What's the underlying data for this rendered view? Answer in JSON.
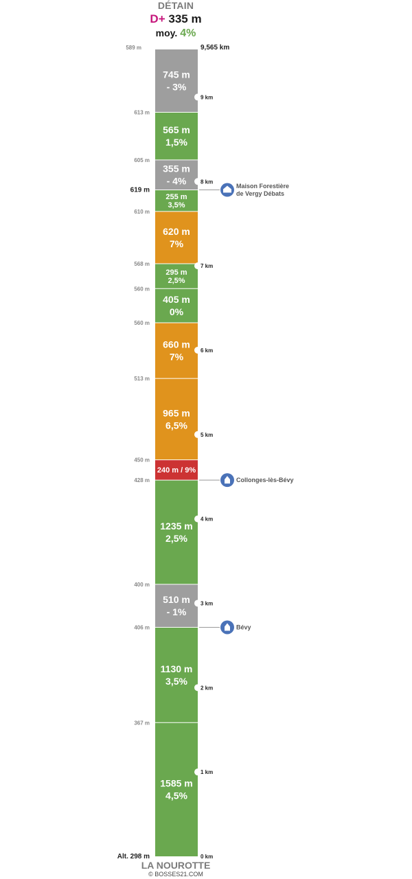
{
  "header": {
    "title": "DÉTAIN",
    "dplus_prefix": "D+",
    "dplus_value": "335 m",
    "avg_prefix": "moy.",
    "avg_value": "4%"
  },
  "footer": {
    "start_name": "LA NOUROTTE",
    "copyright": "© BOSSES21.COM"
  },
  "chart_data": {
    "type": "bar",
    "orientation": "vertical-stacked-segments",
    "total_km": 9.565,
    "total_label": "9,565 km",
    "start_altitude_label": "Alt. 298 m",
    "segments": [
      {
        "length_m": 1585,
        "label": "1585 m",
        "grade_label": "4,5%",
        "color": "#6aa84f",
        "start_alt_label": "",
        "wide": true
      },
      {
        "length_m": 1130,
        "label": "1130 m",
        "grade_label": "3,5%",
        "color": "#6aa84f",
        "start_alt_label": "367 m",
        "wide": true
      },
      {
        "length_m": 510,
        "label": "510 m",
        "grade_label": "- 1%",
        "color": "#9e9e9e",
        "start_alt_label": "406 m",
        "wide": true
      },
      {
        "length_m": 1235,
        "label": "1235 m",
        "grade_label": "2,5%",
        "color": "#6aa84f",
        "start_alt_label": "400 m",
        "wide": true
      },
      {
        "length_m": 240,
        "label": "240 m / 9%",
        "grade_label": "",
        "color": "#cc3333",
        "start_alt_label": "428 m",
        "wide": false
      },
      {
        "length_m": 965,
        "label": "965 m",
        "grade_label": "6,5%",
        "color": "#e0931d",
        "start_alt_label": "450 m",
        "wide": true
      },
      {
        "length_m": 660,
        "label": "660 m",
        "grade_label": "7%",
        "color": "#e0931d",
        "start_alt_label": "513 m",
        "wide": true
      },
      {
        "length_m": 405,
        "label": "405 m",
        "grade_label": "0%",
        "color": "#6aa84f",
        "start_alt_label": "560 m",
        "wide": true
      },
      {
        "length_m": 295,
        "label": "295 m",
        "grade_label": "2,5%",
        "color": "#6aa84f",
        "start_alt_label": "560 m",
        "wide": false
      },
      {
        "length_m": 620,
        "label": "620 m",
        "grade_label": "7%",
        "color": "#e0931d",
        "start_alt_label": "568 m",
        "wide": true
      },
      {
        "length_m": 255,
        "label": "255 m",
        "grade_label": "3,5%",
        "color": "#6aa84f",
        "start_alt_label": "610 m",
        "wide": false
      },
      {
        "length_m": 355,
        "label": "355 m",
        "grade_label": "- 4%",
        "color": "#9e9e9e",
        "start_alt_label": "619 m",
        "wide": true
      },
      {
        "length_m": 565,
        "label": "565 m",
        "grade_label": "1,5%",
        "color": "#6aa84f",
        "start_alt_label": "605 m",
        "wide": true
      },
      {
        "length_m": 745,
        "label": "745 m",
        "grade_label": "- 3%",
        "color": "#9e9e9e",
        "start_alt_label": "613 m",
        "wide": true
      }
    ],
    "end_alt_label": "589 m",
    "km_markers": [
      {
        "km": 0,
        "label": "0 km"
      },
      {
        "km": 1,
        "label": "1 km"
      },
      {
        "km": 2,
        "label": "2 km"
      },
      {
        "km": 3,
        "label": "3 km"
      },
      {
        "km": 4,
        "label": "4 km"
      },
      {
        "km": 5,
        "label": "5 km"
      },
      {
        "km": 6,
        "label": "6 km"
      },
      {
        "km": 7,
        "label": "7 km"
      },
      {
        "km": 8,
        "label": "8 km"
      },
      {
        "km": 9,
        "label": "9 km"
      }
    ],
    "places": [
      {
        "km": 2.715,
        "name_lines": [
          "Bévy"
        ],
        "icon": "church-icon"
      },
      {
        "km": 4.46,
        "name_lines": [
          "Collonges-lès-Bévy"
        ],
        "icon": "church-icon"
      },
      {
        "km": 7.9,
        "name_lines": [
          "Maison Forestière",
          "de Vergy Débats"
        ],
        "icon": "house-icon"
      }
    ],
    "colors": {
      "green": "#6aa84f",
      "orange": "#e0931d",
      "red": "#cc3333",
      "grey": "#9e9e9e",
      "place_icon": "#4a72b8",
      "dplus": "#c6177c"
    }
  }
}
